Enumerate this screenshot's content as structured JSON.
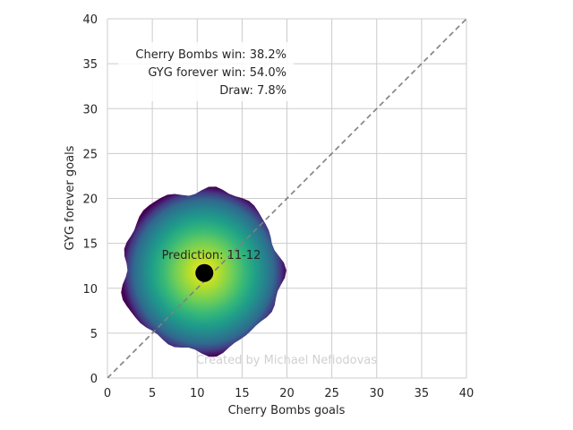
{
  "chart_data": {
    "type": "heatmap",
    "title": "",
    "xlabel": "Cherry Bombs goals",
    "ylabel": "GYG forever goals",
    "xlim": [
      0,
      40
    ],
    "ylim": [
      0,
      40
    ],
    "xticks": [
      "0",
      "5",
      "10",
      "15",
      "20",
      "25",
      "30",
      "35",
      "40"
    ],
    "yticks": [
      "0",
      "5",
      "10",
      "15",
      "20",
      "25",
      "30",
      "35",
      "40"
    ],
    "grid": true,
    "colormap": "viridis",
    "diagonal_line": {
      "from": [
        0,
        0
      ],
      "to": [
        40,
        40
      ],
      "style": "dashed",
      "color": "#808080"
    },
    "distribution": {
      "center": [
        10.5,
        12.0
      ],
      "extent_x": [
        2.5,
        20.2
      ],
      "extent_y": [
        3.3,
        21.5
      ]
    },
    "prediction_point": {
      "x": 10.8,
      "y": 11.7,
      "color": "#000000"
    },
    "prediction_label": "Prediction: 11-12",
    "probabilities": [
      "Cherry Bombs win: 38.2%",
      "GYG forever win: 54.0%",
      "Draw: 7.8%"
    ],
    "credit": "Created by Michael Nefiodovas"
  }
}
